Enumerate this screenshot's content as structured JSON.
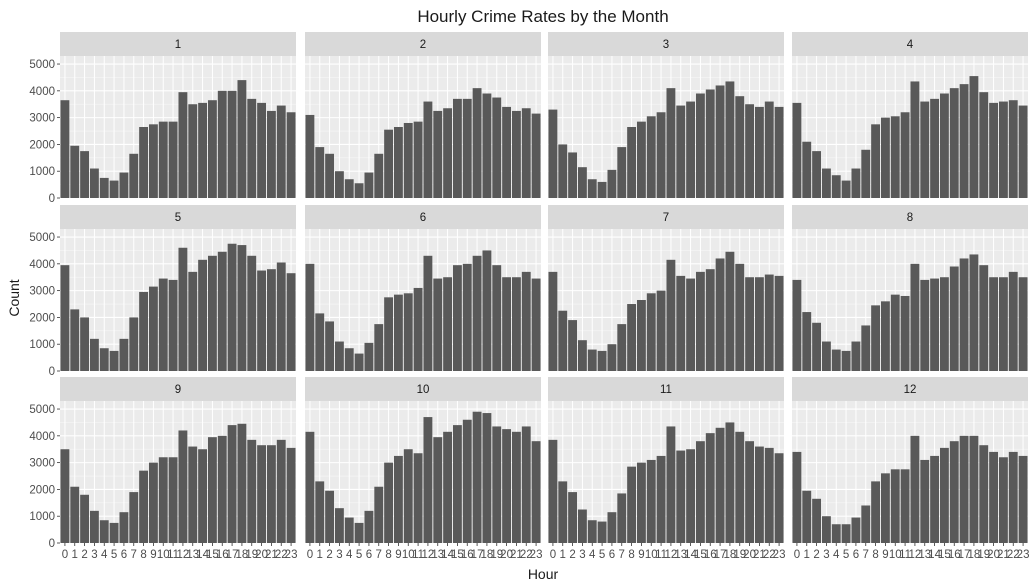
{
  "chart_data": {
    "type": "bar",
    "title": "Hourly Crime Rates by the Month",
    "xlabel": "Hour",
    "ylabel": "Count",
    "ylim": [
      0,
      5300
    ],
    "yticks": [
      0,
      1000,
      2000,
      3000,
      4000,
      5000
    ],
    "categories": [
      "0",
      "1",
      "2",
      "3",
      "4",
      "5",
      "6",
      "7",
      "8",
      "9",
      "10",
      "11",
      "12",
      "13",
      "14",
      "15",
      "16",
      "17",
      "18",
      "19",
      "20",
      "21",
      "22",
      "23"
    ],
    "facet_layout": {
      "rows": 3,
      "cols": 4
    },
    "grid": true,
    "bar_color": "#595959",
    "panel_background": "#ebebeb",
    "strip_background": "#d9d9d9",
    "panels": [
      {
        "label": "1",
        "values": [
          3650,
          1950,
          1750,
          1100,
          750,
          650,
          950,
          1650,
          2650,
          2750,
          2850,
          2850,
          3950,
          3500,
          3550,
          3650,
          4000,
          4000,
          4400,
          3700,
          3550,
          3250,
          3450,
          3200
        ]
      },
      {
        "label": "2",
        "values": [
          3100,
          1900,
          1650,
          1000,
          700,
          550,
          950,
          1650,
          2550,
          2650,
          2800,
          2850,
          3600,
          3250,
          3350,
          3700,
          3700,
          4100,
          3900,
          3750,
          3400,
          3250,
          3350,
          3150
        ]
      },
      {
        "label": "3",
        "values": [
          3300,
          2000,
          1700,
          1150,
          700,
          600,
          1050,
          1900,
          2650,
          2850,
          3050,
          3200,
          4100,
          3450,
          3600,
          3900,
          4050,
          4200,
          4350,
          3800,
          3500,
          3400,
          3600,
          3400
        ]
      },
      {
        "label": "4",
        "values": [
          3550,
          2100,
          1750,
          1100,
          850,
          650,
          1100,
          1800,
          2750,
          3000,
          3050,
          3200,
          4350,
          3600,
          3700,
          3900,
          4100,
          4250,
          4550,
          3950,
          3550,
          3600,
          3650,
          3450
        ]
      },
      {
        "label": "5",
        "values": [
          3950,
          2300,
          2000,
          1200,
          850,
          750,
          1200,
          2000,
          2950,
          3150,
          3450,
          3400,
          4600,
          3700,
          4150,
          4300,
          4450,
          4750,
          4700,
          4300,
          3750,
          3800,
          4050,
          3650
        ]
      },
      {
        "label": "6",
        "values": [
          4000,
          2150,
          1850,
          1100,
          850,
          650,
          1050,
          1750,
          2750,
          2850,
          2900,
          3100,
          4300,
          3450,
          3500,
          3950,
          4000,
          4300,
          4500,
          3950,
          3500,
          3500,
          3700,
          3450
        ]
      },
      {
        "label": "7",
        "values": [
          3700,
          2250,
          1900,
          1150,
          800,
          750,
          1000,
          1750,
          2500,
          2650,
          2900,
          3000,
          4150,
          3550,
          3450,
          3700,
          3800,
          4200,
          4450,
          4000,
          3500,
          3500,
          3600,
          3550
        ]
      },
      {
        "label": "8",
        "values": [
          3400,
          2200,
          1800,
          1100,
          800,
          750,
          1100,
          1700,
          2450,
          2600,
          2850,
          2800,
          4000,
          3400,
          3450,
          3500,
          3900,
          4200,
          4350,
          3950,
          3500,
          3500,
          3700,
          3500
        ]
      },
      {
        "label": "9",
        "values": [
          3500,
          2100,
          1800,
          1200,
          850,
          750,
          1150,
          1900,
          2700,
          3000,
          3200,
          3200,
          4200,
          3600,
          3500,
          3950,
          4000,
          4400,
          4450,
          3850,
          3650,
          3650,
          3850,
          3550
        ]
      },
      {
        "label": "10",
        "values": [
          4150,
          2300,
          1950,
          1300,
          950,
          750,
          1200,
          2100,
          3000,
          3250,
          3500,
          3350,
          4700,
          3950,
          4150,
          4400,
          4600,
          4900,
          4850,
          4350,
          4250,
          4150,
          4350,
          3800
        ]
      },
      {
        "label": "11",
        "values": [
          3850,
          2300,
          1900,
          1250,
          850,
          800,
          1150,
          1850,
          2850,
          3000,
          3100,
          3250,
          4350,
          3450,
          3500,
          3800,
          4100,
          4300,
          4500,
          4150,
          3800,
          3600,
          3550,
          3350
        ]
      },
      {
        "label": "12",
        "values": [
          3400,
          1950,
          1650,
          1000,
          700,
          700,
          950,
          1400,
          2300,
          2600,
          2750,
          2750,
          4000,
          3100,
          3250,
          3550,
          3800,
          4000,
          4000,
          3650,
          3400,
          3200,
          3400,
          3250
        ]
      }
    ]
  }
}
